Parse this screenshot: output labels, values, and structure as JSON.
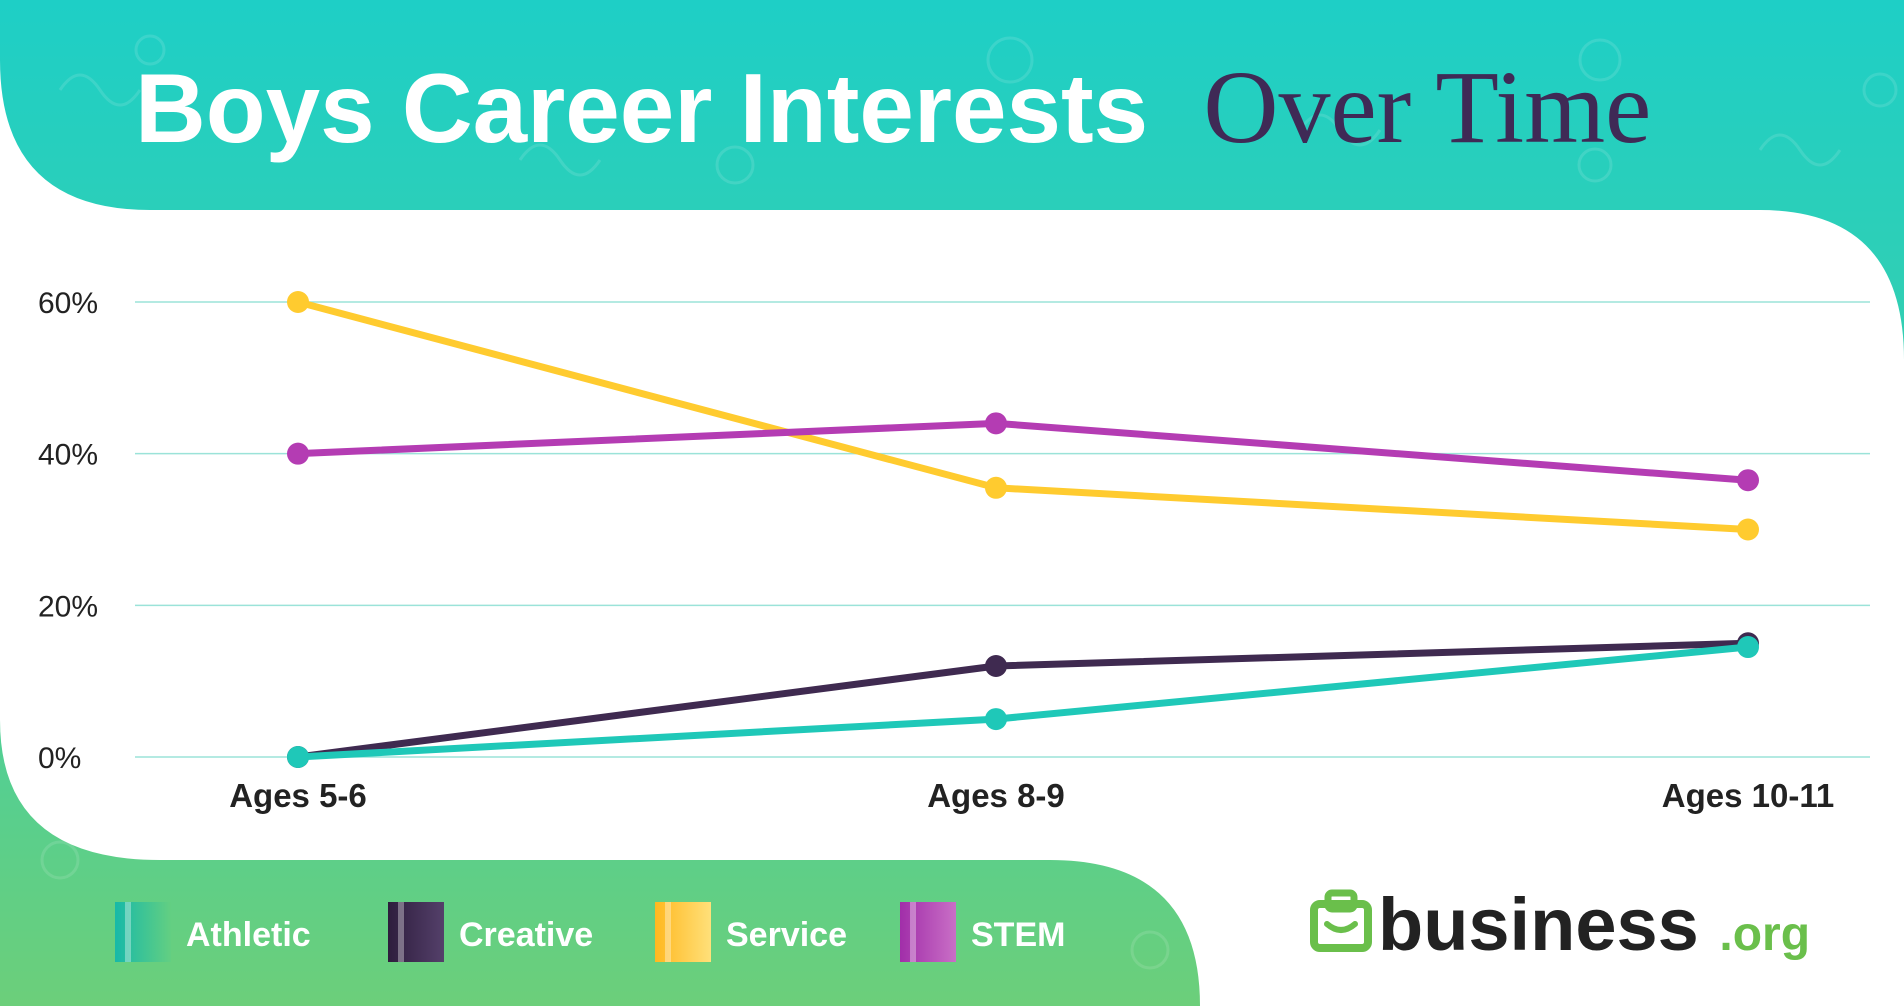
{
  "title": {
    "part1": "Boys Career Interests",
    "part2": "Over Time"
  },
  "chart_data": {
    "type": "line",
    "categories": [
      "Ages 5-6",
      "Ages 8-9",
      "Ages 10-11"
    ],
    "y_ticks": [
      "0%",
      "20%",
      "40%",
      "60%"
    ],
    "ylim": [
      0,
      60
    ],
    "grid": true,
    "legend_position": "bottom-left",
    "series": [
      {
        "name": "Athletic",
        "values": [
          0,
          5,
          14.5
        ],
        "color": "#1fc8b8"
      },
      {
        "name": "Creative",
        "values": [
          0,
          12,
          15
        ],
        "color": "#3f2a50"
      },
      {
        "name": "Service",
        "values": [
          60,
          35.5,
          30
        ],
        "color": "#ffcb2f"
      },
      {
        "name": "STEM",
        "values": [
          40,
          44,
          36.5
        ],
        "color": "#b43cb3"
      }
    ]
  },
  "brand": {
    "name": "business",
    "suffix": ".org",
    "icon": "briefcase-icon",
    "color": "#6abf4b"
  },
  "colors": {
    "teal": "#1ecfc6",
    "green": "#64cf7d",
    "title_accent": "#3f2a56",
    "text": "#222222"
  }
}
